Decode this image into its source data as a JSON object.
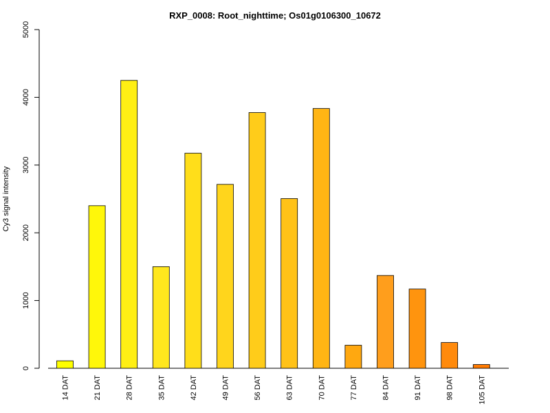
{
  "chart_data": {
    "type": "bar",
    "title": "RXP_0008: Root_nighttime; Os01g0106300_10672",
    "xlabel": "",
    "ylabel": "Cy3 signal intensity",
    "ylim": [
      0,
      5000
    ],
    "yticks": [
      0,
      1000,
      2000,
      3000,
      4000,
      5000
    ],
    "grid": false,
    "legend": "none",
    "categories": [
      "14 DAT",
      "21 DAT",
      "28 DAT",
      "35 DAT",
      "42 DAT",
      "49 DAT",
      "56 DAT",
      "63 DAT",
      "70 DAT",
      "77 DAT",
      "84 DAT",
      "91 DAT",
      "98 DAT",
      "105 DAT"
    ],
    "values": [
      110,
      2400,
      4250,
      1500,
      3175,
      2715,
      3775,
      2505,
      3835,
      340,
      1370,
      1170,
      380,
      55
    ],
    "colors": [
      "#FFFF00",
      "#FFF70A",
      "#FFEF14",
      "#FFE71E",
      "#FFDE1A",
      "#FFD51C",
      "#FFCC1A",
      "#FFC218",
      "#FFB514",
      "#FFA810",
      "#FF9E1C",
      "#FF940E",
      "#FF8A0C",
      "#FF7A00"
    ]
  }
}
